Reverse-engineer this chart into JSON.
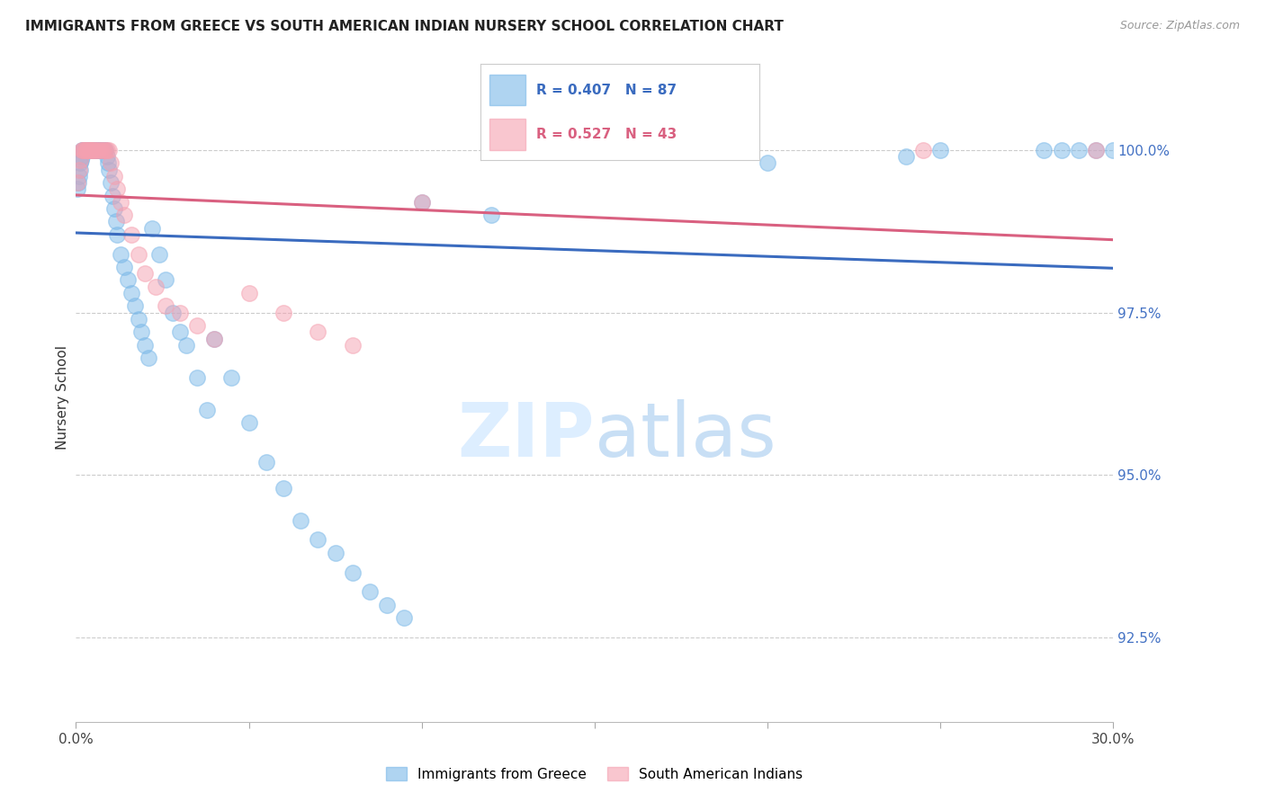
{
  "title": "IMMIGRANTS FROM GREECE VS SOUTH AMERICAN INDIAN NURSERY SCHOOL CORRELATION CHART",
  "source": "Source: ZipAtlas.com",
  "ylabel": "Nursery School",
  "ytick_labels": [
    "92.5%",
    "95.0%",
    "97.5%",
    "100.0%"
  ],
  "ytick_values": [
    92.5,
    95.0,
    97.5,
    100.0
  ],
  "xmin": 0.0,
  "xmax": 30.0,
  "ymin": 91.2,
  "ymax": 101.2,
  "blue_label": "Immigrants from Greece",
  "pink_label": "South American Indians",
  "blue_R": 0.407,
  "blue_N": 87,
  "pink_R": 0.527,
  "pink_N": 43,
  "blue_color": "#7ab8e8",
  "pink_color": "#f5a0b0",
  "blue_line_color": "#3a6bbf",
  "pink_line_color": "#d96080",
  "yaxis_label_color": "#4472c4",
  "title_color": "#222222",
  "background_color": "#ffffff",
  "legend_bg": "#ffffff",
  "legend_border": "#cccccc",
  "grid_color": "#cccccc",
  "watermark_color": "#ddeeff",
  "blue_x": [
    0.05,
    0.08,
    0.1,
    0.12,
    0.13,
    0.15,
    0.17,
    0.18,
    0.2,
    0.22,
    0.23,
    0.25,
    0.27,
    0.28,
    0.3,
    0.32,
    0.33,
    0.35,
    0.37,
    0.38,
    0.4,
    0.42,
    0.43,
    0.45,
    0.47,
    0.48,
    0.5,
    0.53,
    0.55,
    0.58,
    0.6,
    0.63,
    0.65,
    0.68,
    0.7,
    0.73,
    0.75,
    0.8,
    0.83,
    0.85,
    0.9,
    0.93,
    0.95,
    1.0,
    1.05,
    1.1,
    1.15,
    1.2,
    1.3,
    1.4,
    1.5,
    1.6,
    1.7,
    1.8,
    1.9,
    2.0,
    2.1,
    2.2,
    2.4,
    2.6,
    2.8,
    3.0,
    3.2,
    3.5,
    3.8,
    4.0,
    4.5,
    5.0,
    5.5,
    6.0,
    6.5,
    7.0,
    7.5,
    8.0,
    8.5,
    9.0,
    9.5,
    10.0,
    12.0,
    20.0,
    24.0,
    25.0,
    28.0,
    28.5,
    29.0,
    29.5,
    30.0
  ],
  "blue_y": [
    99.4,
    99.5,
    99.6,
    99.7,
    99.8,
    99.85,
    99.9,
    100.0,
    100.0,
    100.0,
    100.0,
    100.0,
    100.0,
    100.0,
    100.0,
    100.0,
    100.0,
    100.0,
    100.0,
    100.0,
    100.0,
    100.0,
    100.0,
    100.0,
    100.0,
    100.0,
    100.0,
    100.0,
    100.0,
    100.0,
    100.0,
    100.0,
    100.0,
    100.0,
    100.0,
    100.0,
    100.0,
    100.0,
    100.0,
    100.0,
    99.9,
    99.8,
    99.7,
    99.5,
    99.3,
    99.1,
    98.9,
    98.7,
    98.4,
    98.2,
    98.0,
    97.8,
    97.6,
    97.4,
    97.2,
    97.0,
    96.8,
    98.8,
    98.4,
    98.0,
    97.5,
    97.2,
    97.0,
    96.5,
    96.0,
    97.1,
    96.5,
    95.8,
    95.2,
    94.8,
    94.3,
    94.0,
    93.8,
    93.5,
    93.2,
    93.0,
    92.8,
    99.2,
    99.0,
    99.8,
    99.9,
    100.0,
    100.0,
    100.0,
    100.0,
    100.0,
    100.0
  ],
  "pink_x": [
    0.05,
    0.1,
    0.13,
    0.17,
    0.2,
    0.23,
    0.27,
    0.3,
    0.33,
    0.37,
    0.4,
    0.43,
    0.47,
    0.5,
    0.55,
    0.6,
    0.65,
    0.7,
    0.75,
    0.8,
    0.85,
    0.9,
    0.95,
    1.0,
    1.1,
    1.2,
    1.3,
    1.4,
    1.6,
    1.8,
    2.0,
    2.3,
    2.6,
    3.0,
    3.5,
    4.0,
    5.0,
    6.0,
    7.0,
    8.0,
    10.0,
    24.5,
    29.5
  ],
  "pink_y": [
    99.5,
    99.7,
    99.85,
    100.0,
    100.0,
    100.0,
    100.0,
    100.0,
    100.0,
    100.0,
    100.0,
    100.0,
    100.0,
    100.0,
    100.0,
    100.0,
    100.0,
    100.0,
    100.0,
    100.0,
    100.0,
    100.0,
    100.0,
    99.8,
    99.6,
    99.4,
    99.2,
    99.0,
    98.7,
    98.4,
    98.1,
    97.9,
    97.6,
    97.5,
    97.3,
    97.1,
    97.8,
    97.5,
    97.2,
    97.0,
    99.2,
    100.0,
    100.0
  ]
}
